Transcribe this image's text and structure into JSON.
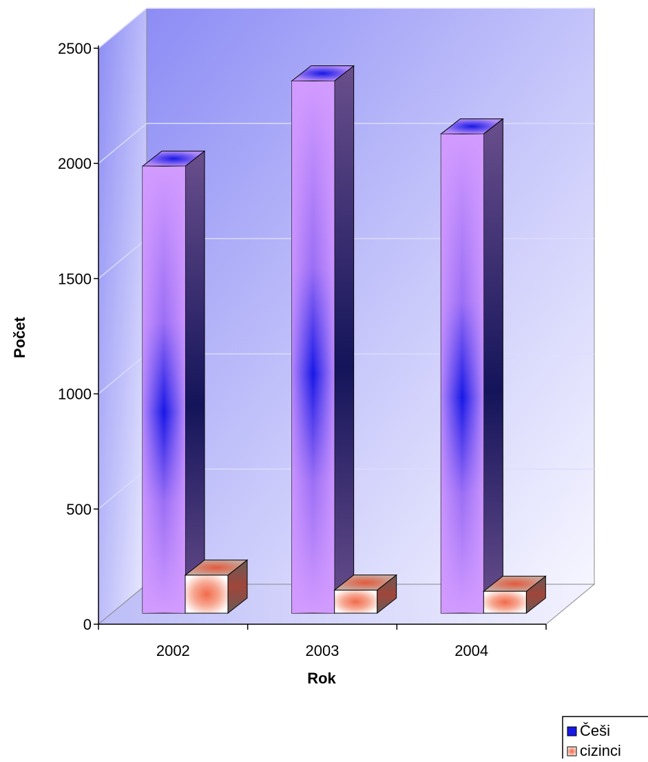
{
  "chart_data": {
    "type": "bar",
    "style": "3d-clustered-column",
    "categories": [
      "2002",
      "2003",
      "2004"
    ],
    "series": [
      {
        "name": "Češi",
        "values": [
          1940,
          2310,
          2080
        ],
        "color": "#d29bff",
        "accent": "#1818e6"
      },
      {
        "name": "cizinci",
        "values": [
          165,
          100,
          95
        ],
        "color": "#ffffff",
        "accent": "#f26a4a"
      }
    ],
    "title": "",
    "xlabel": "Rok",
    "ylabel": "Počet",
    "ylim": [
      0,
      2500
    ],
    "yticks": [
      "0",
      "500",
      "1000",
      "1500",
      "2000",
      "2500"
    ],
    "grid": true,
    "legend": "bottom-right",
    "wall_color": "#8c8cf5"
  }
}
